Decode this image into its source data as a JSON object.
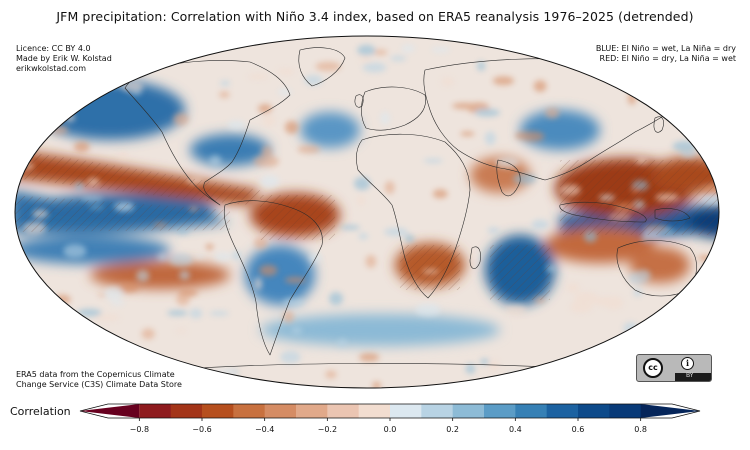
{
  "title": "JFM precipitation: Correlation with Niño 3.4 index, based on ERA5 reanalysis 1976–2025 (detrended)",
  "credits": {
    "licence": "Licence: CC BY 4.0",
    "author": "Made by Erik W. Kolstad",
    "site": "erikwkolstad.com"
  },
  "legend_notes": {
    "blue": "BLUE: El Niño = wet, La Niña = dry",
    "red": "RED: El Niño = dry, La Niña = wet"
  },
  "source": {
    "line1": "ERA5 data from the Copernicus Climate",
    "line2": "Change Service (C3S) Climate Data Store"
  },
  "badge": {
    "cc": "cc",
    "by_symbol": "i",
    "by": "BY"
  },
  "colorbar": {
    "label": "Correlation",
    "min": -0.9,
    "max": 0.9,
    "ticks": [
      -0.8,
      -0.6,
      -0.4,
      -0.2,
      0.0,
      0.2,
      0.4,
      0.6,
      0.8
    ],
    "tick_labels": [
      "−0.8",
      "−0.6",
      "−0.4",
      "−0.2",
      "0.0",
      "0.2",
      "0.4",
      "0.6",
      "0.8"
    ],
    "colors": [
      "#67001f",
      "#8e1b1e",
      "#a33418",
      "#b64f1e",
      "#c8713f",
      "#d58c64",
      "#e1a98a",
      "#ebc5b2",
      "#f2ddd0",
      "#dce8f0",
      "#b8d3e4",
      "#8dbbd6",
      "#5b9cc6",
      "#3680b5",
      "#1c62a1",
      "#0d4a8a",
      "#083a78",
      "#05255a"
    ]
  },
  "map": {
    "projection": "Mollweide",
    "palette": {
      "background": "#efe6df",
      "coast": "#2a2a2a",
      "hatch": "#6b3a2a"
    }
  }
}
